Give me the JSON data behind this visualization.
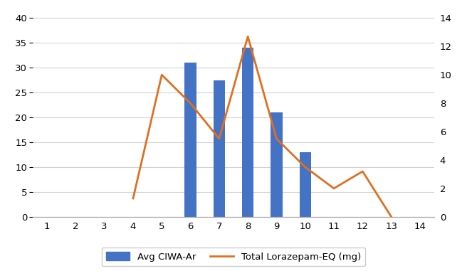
{
  "bar_x": [
    6,
    7,
    8,
    9,
    10
  ],
  "bar_heights": [
    31,
    27.5,
    34,
    21,
    13
  ],
  "bar_color": "#4472c4",
  "line_x": [
    4,
    5,
    6,
    7,
    8,
    9,
    10,
    11,
    12,
    13
  ],
  "line_y": [
    1.3,
    10.0,
    8.0,
    5.5,
    12.7,
    5.5,
    3.5,
    2.0,
    3.2,
    0.0
  ],
  "line_color": "#e07020",
  "xlim": [
    0.5,
    14.5
  ],
  "xticks": [
    1,
    2,
    3,
    4,
    5,
    6,
    7,
    8,
    9,
    10,
    11,
    12,
    13,
    14
  ],
  "ylim_left": [
    0,
    42
  ],
  "yticks_left": [
    0,
    5,
    10,
    15,
    20,
    25,
    30,
    35,
    40
  ],
  "ylim_right": [
    0,
    14.7
  ],
  "yticks_right": [
    0,
    2,
    4,
    6,
    8,
    10,
    12,
    14
  ],
  "legend_bar_label": "Avg CIWA-Ar",
  "legend_line_label": "Total Lorazepam-EQ (mg)",
  "background_color": "#ffffff",
  "grid_color": "#d3d3d3",
  "bar_width": 0.4,
  "line_width": 2.0,
  "tick_fontsize": 9.5,
  "legend_fontsize": 9.5
}
